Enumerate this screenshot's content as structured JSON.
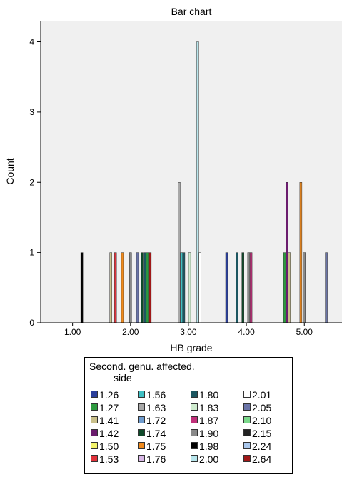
{
  "chart_data": {
    "type": "bar",
    "title": "Bar chart",
    "xlabel": "HB grade",
    "ylabel": "Count",
    "x_ticks": [
      "1.00",
      "2.00",
      "3.00",
      "4.00",
      "5.00"
    ],
    "y_ticks": [
      "0",
      "1",
      "2",
      "3",
      "4"
    ],
    "xlim": [
      0.45,
      5.65
    ],
    "ylim": [
      0,
      4.3
    ],
    "grid": false,
    "legend_position": "bottom",
    "legend_title": [
      "Second. genu. affected.",
      "side"
    ],
    "series": [
      {
        "name": "1.26",
        "color": "#2b3f9a"
      },
      {
        "name": "1.27",
        "color": "#2c9a3e"
      },
      {
        "name": "1.41",
        "color": "#c9c08a"
      },
      {
        "name": "1.42",
        "color": "#6b1c6e"
      },
      {
        "name": "1.50",
        "color": "#f3f36a"
      },
      {
        "name": "1.53",
        "color": "#e0323a"
      },
      {
        "name": "1.56",
        "color": "#3fc0c4"
      },
      {
        "name": "1.63",
        "color": "#a8a8a8"
      },
      {
        "name": "1.72",
        "color": "#6f9ccf"
      },
      {
        "name": "1.74",
        "color": "#0e4a2a"
      },
      {
        "name": "1.75",
        "color": "#f08a1c"
      },
      {
        "name": "1.76",
        "color": "#d9b8e8"
      },
      {
        "name": "1.80",
        "color": "#1c5660"
      },
      {
        "name": "1.83",
        "color": "#cfeccf"
      },
      {
        "name": "1.87",
        "color": "#c0307a"
      },
      {
        "name": "1.90",
        "color": "#8a8a8a"
      },
      {
        "name": "1.98",
        "color": "#000000"
      },
      {
        "name": "2.00",
        "color": "#b8e6ec"
      },
      {
        "name": "2.01",
        "color": "#ffffff"
      },
      {
        "name": "2.05",
        "color": "#6a74a8"
      },
      {
        "name": "2.10",
        "color": "#7ad88a"
      },
      {
        "name": "2.15",
        "color": "#222222"
      },
      {
        "name": "2.24",
        "color": "#a9c7ec"
      },
      {
        "name": "2.64",
        "color": "#a01818"
      }
    ],
    "bars": [
      {
        "x": 1.16,
        "value": 1,
        "series": "1.98"
      },
      {
        "x": 1.66,
        "value": 1,
        "series": "1.41"
      },
      {
        "x": 1.74,
        "value": 1,
        "series": "1.53"
      },
      {
        "x": 1.86,
        "value": 1,
        "series": "1.75"
      },
      {
        "x": 2.0,
        "value": 1,
        "series": "1.90"
      },
      {
        "x": 2.12,
        "value": 1,
        "series": "2.05"
      },
      {
        "x": 2.2,
        "value": 1,
        "series": "1.74"
      },
      {
        "x": 2.25,
        "value": 1,
        "series": "1.80"
      },
      {
        "x": 2.29,
        "value": 1,
        "series": "1.27"
      },
      {
        "x": 2.34,
        "value": 1,
        "series": "2.64"
      },
      {
        "x": 2.84,
        "value": 2,
        "series": "1.63"
      },
      {
        "x": 2.88,
        "value": 1,
        "series": "1.56"
      },
      {
        "x": 2.92,
        "value": 1,
        "series": "1.80"
      },
      {
        "x": 3.02,
        "value": 1,
        "series": "1.83"
      },
      {
        "x": 3.16,
        "value": 4,
        "series": "2.00"
      },
      {
        "x": 3.2,
        "value": 1,
        "series": "2.01"
      },
      {
        "x": 3.66,
        "value": 1,
        "series": "1.26"
      },
      {
        "x": 3.84,
        "value": 1,
        "series": "1.80"
      },
      {
        "x": 3.94,
        "value": 1,
        "series": "1.74"
      },
      {
        "x": 4.04,
        "value": 1,
        "series": "1.90"
      },
      {
        "x": 4.08,
        "value": 1,
        "series": "1.87"
      },
      {
        "x": 4.66,
        "value": 1,
        "series": "1.27"
      },
      {
        "x": 4.7,
        "value": 2,
        "series": "1.42"
      },
      {
        "x": 4.74,
        "value": 1,
        "series": "1.41"
      },
      {
        "x": 4.94,
        "value": 2,
        "series": "1.75"
      },
      {
        "x": 5.0,
        "value": 1,
        "series": "1.90"
      },
      {
        "x": 5.38,
        "value": 1,
        "series": "2.05"
      }
    ]
  }
}
